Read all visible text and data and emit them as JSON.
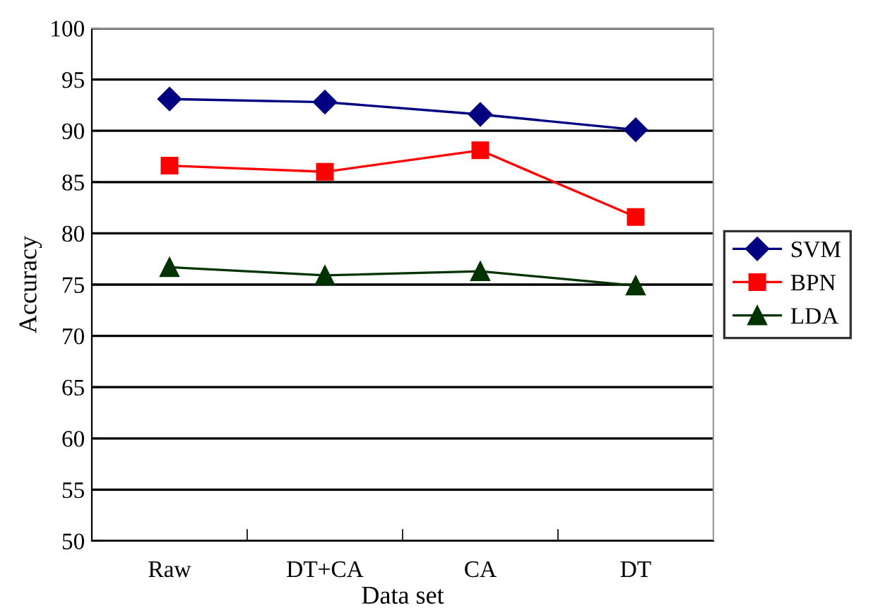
{
  "chart_data": {
    "type": "line",
    "xlabel": "Data set",
    "ylabel": "Accuracy",
    "categories": [
      "Raw",
      "DT+CA",
      "CA",
      "DT"
    ],
    "series": [
      {
        "name": "SVM",
        "color": "#000080",
        "marker": "diamond",
        "values": [
          93.1,
          92.8,
          91.6,
          90.1
        ]
      },
      {
        "name": "BPN",
        "color": "#ff0000",
        "marker": "square",
        "values": [
          86.6,
          86.0,
          88.1,
          81.6
        ]
      },
      {
        "name": "LDA",
        "color": "#003300",
        "marker": "triangle",
        "values": [
          76.7,
          75.9,
          76.3,
          74.9
        ]
      }
    ],
    "ylim": [
      50,
      100
    ],
    "yticks": [
      50,
      55,
      60,
      65,
      70,
      75,
      80,
      85,
      90,
      95,
      100
    ],
    "grid": "y",
    "legend": "right",
    "line_style": "solid"
  }
}
